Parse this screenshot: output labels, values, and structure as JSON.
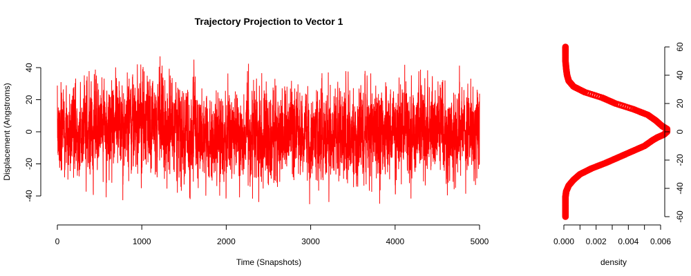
{
  "chart_data": [
    {
      "type": "line",
      "title": "Trajectory Projection to Vector 1",
      "xlabel": "Time (Snapshots)",
      "ylabel": "Displacement (Angstroms)",
      "xlim": [
        0,
        5000
      ],
      "ylim": [
        -50,
        50
      ],
      "x_ticks": [
        0,
        1000,
        2000,
        3000,
        4000,
        5000
      ],
      "y_ticks": [
        -40,
        -20,
        0,
        20,
        40
      ],
      "series": [
        {
          "color": "#ff0000",
          "n_points": 5000,
          "envelope": {
            "x": [
              0,
              250,
              500,
              750,
              1000,
              1200,
              1400,
              1470,
              1500,
              1750,
              2000,
              2250,
              2500,
              2750,
              3000,
              3250,
              3500,
              3750,
              4000,
              4250,
              4500,
              4750,
              5000
            ],
            "center": [
              0,
              -2,
              3,
              6,
              6,
              6,
              2,
              -6,
              -4,
              -5,
              -3,
              -3,
              -2,
              -1,
              -1,
              -1,
              -2,
              0,
              -1,
              -1,
              0,
              1,
              0
            ],
            "spread": [
              12,
              12,
              12,
              13,
              14,
              14,
              13,
              14,
              14,
              13,
              13,
              13,
              14,
              13,
              13,
              13,
              13,
              13,
              13,
              13,
              13,
              13,
              12
            ],
            "max": [
              30,
              39,
              42,
              44,
              49,
              50,
              42,
              45,
              52,
              40,
              42,
              44,
              44,
              46,
              51,
              45,
              40,
              44,
              42,
              45,
              45,
              49,
              39
            ],
            "min": [
              -43,
              -42,
              -41,
              -44,
              -40,
              -40,
              -38,
              -45,
              -42,
              -49,
              -48,
              -50,
              -54,
              -52,
              -45,
              -48,
              -45,
              -50,
              -42,
              -43,
              -40,
              -43,
              -31
            ]
          }
        }
      ]
    },
    {
      "type": "line",
      "title": "",
      "xlabel": "density",
      "ylabel": "",
      "xlim": [
        0,
        0.0065
      ],
      "ylim": [
        -60,
        60
      ],
      "x_ticks": [
        "0.000",
        "0.002",
        "0.004",
        "0.006"
      ],
      "x_tick_values": [
        0,
        0.002,
        0.004,
        0.006
      ],
      "y_ticks": [
        -60,
        -40,
        -20,
        0,
        20,
        40,
        60
      ],
      "y_axis_side": "right",
      "series": [
        {
          "color": "#ff0000",
          "marker": "circle",
          "points": [
            [
              0.0001,
              60
            ],
            [
              0.0001,
              56
            ],
            [
              0.0001,
              50
            ],
            [
              0.00015,
              44
            ],
            [
              0.0002,
              40
            ],
            [
              0.0003,
              36
            ],
            [
              0.0006,
              32
            ],
            [
              0.0013,
              28
            ],
            [
              0.0024,
              24
            ],
            [
              0.0032,
              20
            ],
            [
              0.0043,
              16
            ],
            [
              0.0052,
              12
            ],
            [
              0.0057,
              8
            ],
            [
              0.0061,
              4
            ],
            [
              0.0064,
              2
            ],
            [
              0.0064,
              0
            ],
            [
              0.0062,
              -2
            ],
            [
              0.0058,
              -4
            ],
            [
              0.0055,
              -6
            ],
            [
              0.005,
              -10
            ],
            [
              0.0042,
              -14
            ],
            [
              0.0034,
              -18
            ],
            [
              0.0026,
              -22
            ],
            [
              0.0017,
              -26
            ],
            [
              0.001,
              -30
            ],
            [
              0.0006,
              -34
            ],
            [
              0.0003,
              -38
            ],
            [
              0.00015,
              -42
            ],
            [
              0.0001,
              -46
            ],
            [
              0.0001,
              -50
            ],
            [
              0.0001,
              -55
            ],
            [
              0.0001,
              -60
            ]
          ]
        }
      ]
    }
  ]
}
